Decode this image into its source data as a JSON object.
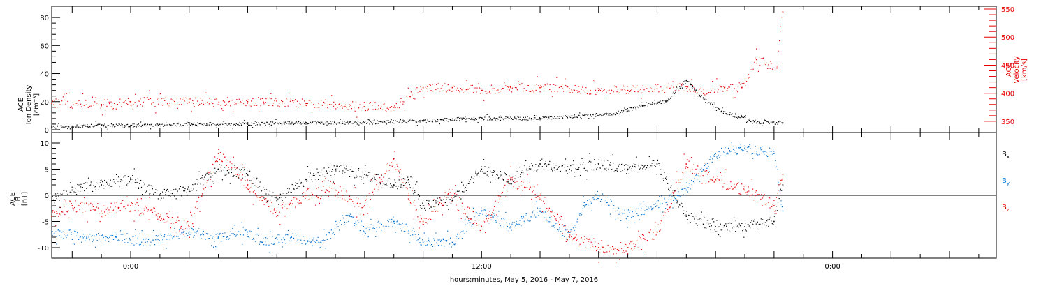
{
  "xlabel": "hours:minutes, May  5, 2016 - May  7, 2016",
  "x_ticks": [
    "0:00",
    "12:00",
    "0:00"
  ],
  "x_tick_hours": [
    0,
    12,
    24
  ],
  "x_range_hours": [
    -2.7,
    29.6
  ],
  "chart_data": [
    {
      "type": "scatter",
      "panel": "top",
      "left_axis": {
        "label_lines": [
          "ACE",
          "Ion Density",
          "[cm⁻³]"
        ],
        "ylim": [
          -2,
          88
        ],
        "ticks": [
          0,
          20,
          40,
          60,
          80
        ],
        "tick_labels": [
          "0",
          "20",
          "40",
          "60",
          "80"
        ],
        "color": "#000000"
      },
      "right_axis": {
        "label_lines": [
          "ACE",
          "Velocity",
          "[km/s]"
        ],
        "ylim": [
          330,
          555
        ],
        "ticks": [
          350,
          400,
          450,
          500,
          550
        ],
        "tick_labels": [
          "350",
          "400",
          "450",
          "500",
          "550"
        ],
        "color": "#e60000"
      },
      "series": [
        {
          "axis": "left",
          "color": "#000000",
          "x": [
            -2.7,
            -1,
            0,
            2,
            4,
            6,
            8,
            10,
            11.5,
            12.5,
            14,
            15.5,
            16.5,
            17.5,
            18.3,
            19,
            19.6,
            20.2,
            21.5,
            22.3
          ],
          "values": [
            2,
            3,
            3,
            4,
            4,
            5,
            5,
            6,
            8,
            8,
            8,
            10,
            11,
            17,
            20,
            35,
            22,
            13,
            5,
            5
          ]
        },
        {
          "axis": "right",
          "color": "#e60000",
          "x": [
            -2.7,
            -1,
            0,
            2,
            4,
            6,
            7,
            8,
            9,
            10,
            11,
            12,
            13,
            14,
            15,
            16,
            17,
            18,
            19,
            19.6,
            20.3,
            20.9,
            21.4,
            22.1,
            22.3
          ],
          "values": [
            382,
            380,
            385,
            384,
            385,
            382,
            380,
            376,
            375,
            410,
            410,
            405,
            410,
            410,
            408,
            405,
            405,
            408,
            412,
            400,
            410,
            410,
            460,
            445,
            545
          ]
        }
      ]
    },
    {
      "type": "scatter",
      "panel": "bottom",
      "left_axis": {
        "label_lines": [
          "ACE",
          "B",
          "[nT]"
        ],
        "ylim": [
          -12,
          12
        ],
        "ticks": [
          -10,
          -5,
          0,
          5,
          10
        ],
        "tick_labels": [
          "-10",
          "-5",
          "0",
          "5",
          "10"
        ],
        "color": "#000000"
      },
      "zero_line": 0,
      "legend_position": "right",
      "series": [
        {
          "name": "Bx",
          "legend_main": "B",
          "legend_sub": "x",
          "color": "#000000",
          "x": [
            -2.7,
            -2,
            -1,
            0,
            1,
            2,
            3,
            4,
            5,
            6,
            7,
            8,
            9,
            9.5,
            10,
            11,
            12,
            13,
            14,
            15,
            16,
            17,
            18,
            19,
            20,
            21,
            22,
            22.3
          ],
          "values": [
            -1,
            1,
            2,
            3,
            0,
            1,
            5,
            4,
            -1,
            3,
            5,
            4,
            2,
            3,
            -2,
            -1,
            5,
            3,
            6,
            5,
            6,
            5,
            6,
            -4,
            -6,
            -6,
            -5,
            2
          ]
        },
        {
          "name": "By",
          "legend_main": "B",
          "legend_sub": "y",
          "color": "#0070d0",
          "x": [
            -2.7,
            -1.5,
            -0.5,
            0.5,
            2,
            3,
            4,
            4.5,
            5.5,
            6.5,
            7.5,
            8,
            9,
            10,
            11,
            12,
            13,
            14,
            15,
            15.5,
            16,
            17,
            18,
            19,
            20,
            21,
            22,
            22.3
          ],
          "values": [
            -7,
            -8,
            -8,
            -9,
            -7,
            -8,
            -7,
            -9,
            -8,
            -9,
            -4,
            -7,
            -5,
            -9,
            -9,
            -3,
            -6,
            -3,
            -8,
            -2,
            0,
            -4,
            -2,
            1,
            8,
            9,
            8,
            -3
          ]
        },
        {
          "name": "Bz",
          "legend_main": "B",
          "legend_sub": "z",
          "color": "#e60000",
          "x": [
            -2.7,
            -2,
            -1,
            0,
            1,
            2,
            3,
            4,
            5,
            6,
            7,
            8,
            9,
            9.5,
            10,
            11,
            12,
            13,
            14,
            15,
            16,
            17,
            18,
            19,
            20,
            21,
            22,
            22.3
          ],
          "values": [
            -4,
            -2,
            -3,
            -2,
            -4,
            -6,
            8,
            2,
            -3,
            0,
            1,
            -2,
            7,
            0,
            -5,
            0,
            -6,
            3,
            0,
            -8,
            -10,
            -10,
            -7,
            6,
            3,
            1,
            -2,
            4
          ]
        }
      ]
    }
  ]
}
